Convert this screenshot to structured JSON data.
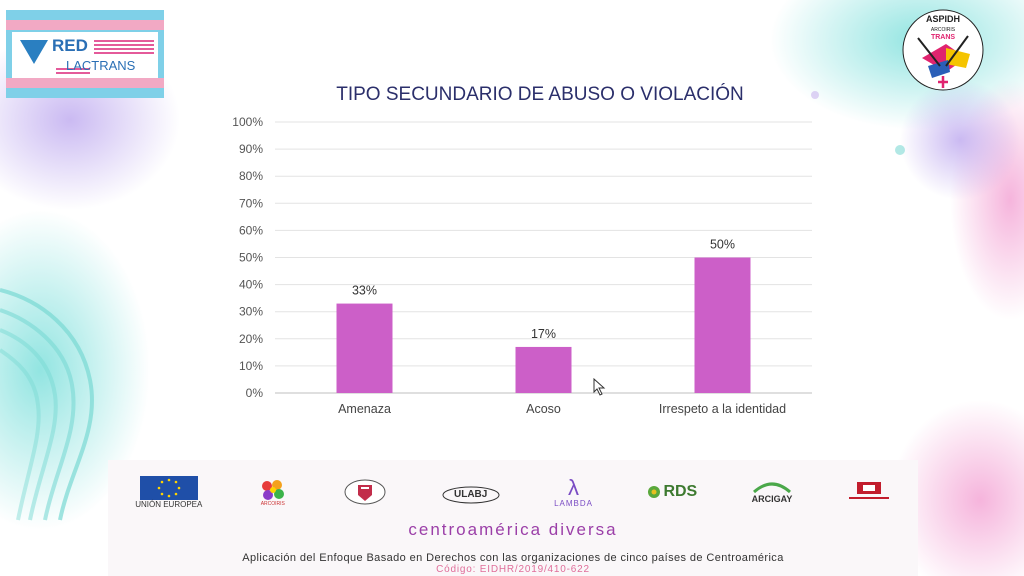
{
  "header": {
    "logo_left": {
      "line1": "RED",
      "line2": "LACTRANS"
    },
    "logo_right": {
      "name": "ASPIDH",
      "sub": "ARCOIRIS",
      "tag": "TRANS"
    }
  },
  "chart_data": {
    "type": "bar",
    "title": "TIPO SECUNDARIO DE ABUSO O VIOLACIÓN",
    "categories": [
      "Amenaza",
      "Acoso",
      "Irrespeto a la identidad"
    ],
    "values": [
      33,
      17,
      50
    ],
    "value_labels": [
      "33%",
      "17%",
      "50%"
    ],
    "y_ticks": [
      "0%",
      "10%",
      "20%",
      "30%",
      "40%",
      "50%",
      "60%",
      "70%",
      "80%",
      "90%",
      "100%"
    ],
    "ylim": [
      0,
      100
    ],
    "bar_color": "#cc5fc8",
    "grid": true,
    "legend": "none"
  },
  "footer": {
    "sponsors": [
      "UNIÓN EUROPEA",
      "ARCOIRIS",
      "",
      "ULABJ",
      "LAMBDA",
      "RDS",
      "ARCIGAY",
      ""
    ],
    "brand": "centroamérica diversa",
    "description": "Aplicación del Enfoque Basado en Derechos con las organizaciones de cinco países de Centroamérica",
    "code": "Código: EIDHR/2019/410-622"
  },
  "colors": {
    "accent": "#cc5fc8",
    "title": "#2b2f6b",
    "brand": "#9b3fa8",
    "teal": "#6fd3d0",
    "lavender": "#c9b6ef",
    "pink": "#f2a9c4"
  }
}
